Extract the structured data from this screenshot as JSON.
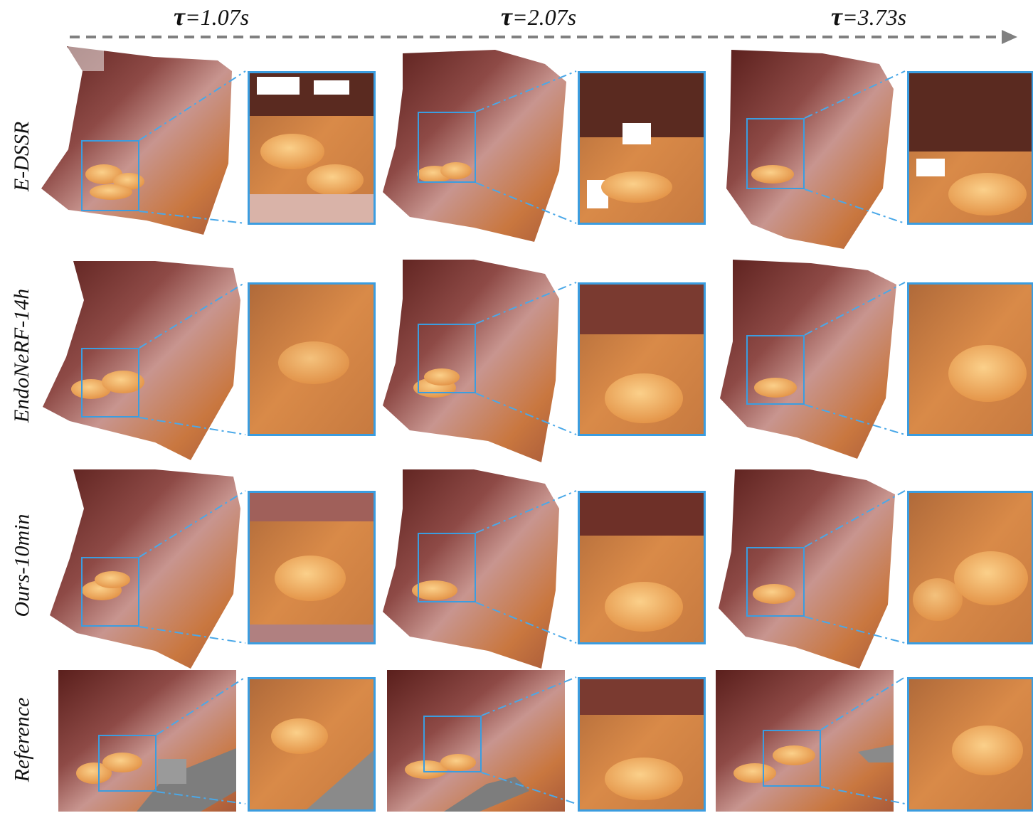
{
  "time_labels": [
    {
      "symbol": "τ",
      "value": "=1.07s"
    },
    {
      "symbol": "τ",
      "value": "=2.07s"
    },
    {
      "symbol": "τ",
      "value": "=3.73s"
    }
  ],
  "row_labels": [
    "E-DSSR",
    "EndoNeRF-14h",
    "Ours-10min",
    "Reference"
  ],
  "colors": {
    "accent": "#3b9de0",
    "arrow": "#808080",
    "tissue_dark": "#5a1f1c",
    "tissue_mid": "#9b5a52",
    "tissue_light": "#d9a58f",
    "fat": "#e9a04e"
  }
}
